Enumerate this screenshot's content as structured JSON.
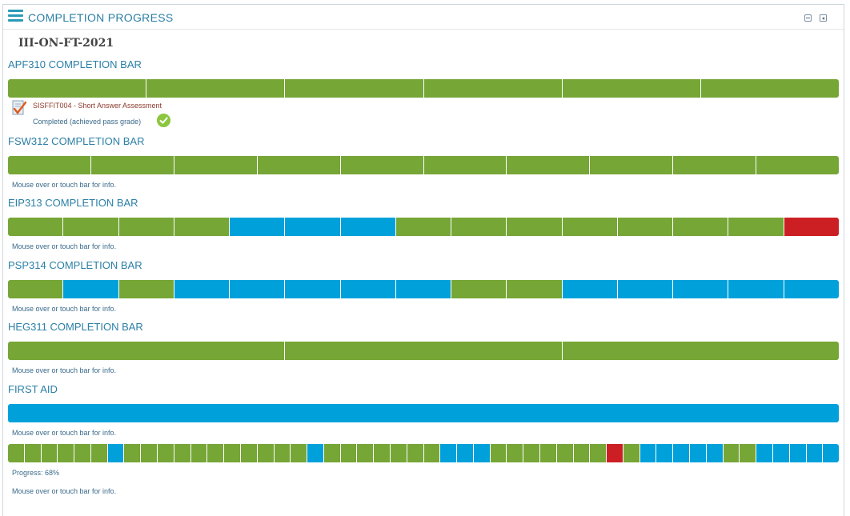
{
  "block": {
    "title": "COMPLETION PROGRESS",
    "menu_icon": "hamburger-icon",
    "controls": [
      "collapse-icon",
      "dock-icon"
    ]
  },
  "course": "III-ON-FT-2021",
  "colors": {
    "complete": "#76a636",
    "submitted": "#00a1db",
    "notcompleted": "#cc1f24"
  },
  "activity": {
    "name": "SISFFIT004 - Short Answer Assessment",
    "status": "Completed (achieved pass grade)",
    "icon": "assignment-icon",
    "status_icon": "check-circle-icon"
  },
  "info_text": "Mouse over or touch bar for info.",
  "progress_text": "Progress: 68%",
  "bars": [
    {
      "label": "APF310 COMPLETION BAR",
      "segments": [
        "c",
        "c",
        "c",
        "c",
        "c",
        "c"
      ]
    },
    {
      "label": "FSW312 COMPLETION BAR",
      "segments": [
        "c",
        "c",
        "c",
        "c",
        "c",
        "c",
        "c",
        "c",
        "c",
        "c"
      ]
    },
    {
      "label": "EIP313 COMPLETION BAR",
      "segments": [
        "c",
        "c",
        "c",
        "c",
        "b",
        "b",
        "b",
        "c",
        "c",
        "c",
        "c",
        "c",
        "c",
        "c",
        "n"
      ]
    },
    {
      "label": "PSP314 COMPLETION BAR",
      "segments": [
        "c",
        "b",
        "c",
        "b",
        "b",
        "b",
        "b",
        "b",
        "c",
        "c",
        "b",
        "b",
        "b",
        "b",
        "b"
      ]
    },
    {
      "label": "HEG311 COMPLETION BAR",
      "segments": [
        "c",
        "c",
        "c"
      ]
    },
    {
      "label": "FIRST AID",
      "segments": [
        "b"
      ]
    }
  ],
  "overall": {
    "segments": [
      "c",
      "c",
      "c",
      "c",
      "c",
      "c",
      "b",
      "c",
      "c",
      "c",
      "c",
      "c",
      "c",
      "c",
      "c",
      "c",
      "c",
      "c",
      "b",
      "c",
      "c",
      "c",
      "c",
      "c",
      "c",
      "c",
      "b",
      "b",
      "b",
      "c",
      "c",
      "c",
      "c",
      "c",
      "c",
      "c",
      "n",
      "c",
      "b",
      "b",
      "b",
      "b",
      "b",
      "c",
      "c",
      "b",
      "b",
      "b",
      "b",
      "b"
    ]
  }
}
